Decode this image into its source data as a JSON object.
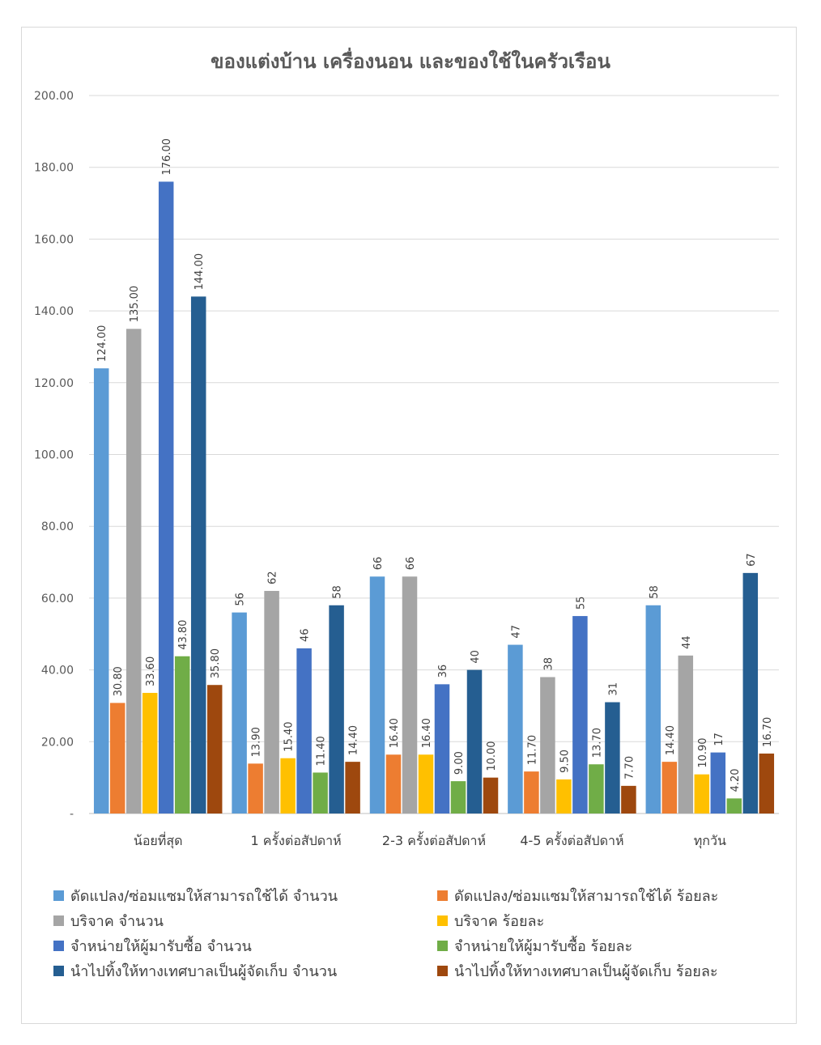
{
  "chart_data": {
    "type": "bar",
    "title": "ของแต่งบ้าน เครื่องนอน และของใช้ในครัวเรือน",
    "categories": [
      "น้อยที่สุด",
      "1 ครั้งต่อสัปดาห์",
      "2-3 ครั้งต่อสัปดาห์",
      "4-5 ครั้งต่อสัปดาห์",
      "ทุกวัน"
    ],
    "ylim": [
      0,
      200
    ],
    "y_ticks": [
      "-",
      "20.00",
      "40.00",
      "60.00",
      "80.00",
      "100.00",
      "120.00",
      "140.00",
      "160.00",
      "180.00",
      "200.00"
    ],
    "grid": true,
    "legend_position": "bottom",
    "series": [
      {
        "name": "ดัดแปลง/ซ่อมแซมให้สามารถใช้ได้ จำนวน",
        "color": "#5b9bd5",
        "values": [
          124,
          56,
          66,
          47,
          58
        ],
        "labels": [
          "124.00",
          "56",
          "66",
          "47",
          "58"
        ]
      },
      {
        "name": "ดัดแปลง/ซ่อมแซมให้สามารถใช้ได้ ร้อยละ",
        "color": "#ed7d31",
        "values": [
          30.8,
          13.9,
          16.4,
          11.7,
          14.4
        ],
        "labels": [
          "30.80",
          "13.90",
          "16.40",
          "11.70",
          "14.40"
        ]
      },
      {
        "name": "บริจาค จำนวน",
        "color": "#a5a5a5",
        "values": [
          135,
          62,
          66,
          38,
          44
        ],
        "labels": [
          "135.00",
          "62",
          "66",
          "38",
          "44"
        ]
      },
      {
        "name": "บริจาค ร้อยละ",
        "color": "#ffc000",
        "values": [
          33.6,
          15.4,
          16.4,
          9.5,
          10.9
        ],
        "labels": [
          "33.60",
          "15.40",
          "16.40",
          "9.50",
          "10.90"
        ]
      },
      {
        "name": "จำหน่ายให้ผู้มารับซื้อ จำนวน",
        "color": "#4472c4",
        "values": [
          176,
          46,
          36,
          55,
          17
        ],
        "labels": [
          "176.00",
          "46",
          "36",
          "55",
          "17"
        ]
      },
      {
        "name": "จำหน่ายให้ผู้มารับซื้อ ร้อยละ",
        "color": "#70ad47",
        "values": [
          43.8,
          11.4,
          9.0,
          13.7,
          4.2
        ],
        "labels": [
          "43.80",
          "11.40",
          "9.00",
          "13.70",
          "4.20"
        ]
      },
      {
        "name": "นำไปทิ้งให้ทางเทศบาลเป็นผู้จัดเก็บ จำนวน",
        "color": "#255e91",
        "values": [
          144,
          58,
          40,
          31,
          67
        ],
        "labels": [
          "144.00",
          "58",
          "40",
          "31",
          "67"
        ]
      },
      {
        "name": "นำไปทิ้งให้ทางเทศบาลเป็นผู้จัดเก็บ ร้อยละ",
        "color": "#9e480e",
        "values": [
          35.8,
          14.4,
          10.0,
          7.7,
          16.7
        ],
        "labels": [
          "35.80",
          "14.40",
          "10.00",
          "7.70",
          "16.70"
        ]
      }
    ]
  }
}
